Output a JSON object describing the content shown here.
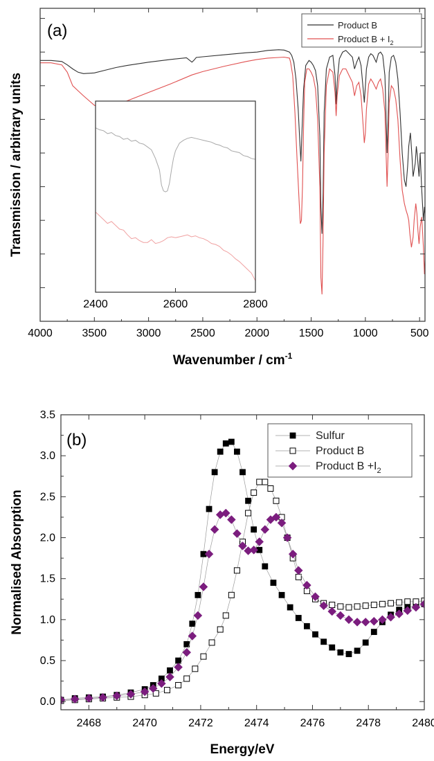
{
  "chart_data": [
    {
      "panel_label": "(a)",
      "type": "line",
      "xlabel": "Wavenumber / cm",
      "xlabel_sup": "-1",
      "ylabel": "Transmission / arbitrary units",
      "x_ticks": [
        "4000",
        "3500",
        "3000",
        "2500",
        "2000",
        "1500",
        "1000",
        "500"
      ],
      "xlim": [
        4000,
        450
      ],
      "x_reversed": true,
      "y_tick_labels_shown": false,
      "legend_position": "top-right",
      "series": [
        {
          "name": "Product B",
          "color": "#303030",
          "x": [
            4000,
            3900,
            3800,
            3750,
            3700,
            3650,
            3600,
            3500,
            3400,
            3300,
            3200,
            3000,
            2800,
            2650,
            2600,
            2580,
            2560,
            2500,
            2300,
            2100,
            2000,
            1900,
            1800,
            1750,
            1700,
            1680,
            1660,
            1640,
            1620,
            1605,
            1595,
            1585,
            1570,
            1550,
            1520,
            1500,
            1480,
            1460,
            1440,
            1420,
            1410,
            1400,
            1390,
            1380,
            1360,
            1330,
            1300,
            1280,
            1270,
            1260,
            1240,
            1210,
            1180,
            1150,
            1120,
            1100,
            1080,
            1060,
            1040,
            1020,
            1010,
            1000,
            990,
            970,
            950,
            930,
            900,
            880,
            860,
            840,
            820,
            810,
            800,
            790,
            780,
            760,
            740,
            720,
            700,
            680,
            660,
            640,
            625,
            610,
            600,
            585,
            570,
            560,
            540,
            530,
            520,
            505,
            495,
            480,
            465,
            455,
            450
          ],
          "y": [
            7.75,
            7.75,
            7.72,
            7.62,
            7.5,
            7.4,
            7.36,
            7.38,
            7.46,
            7.54,
            7.6,
            7.7,
            7.78,
            7.83,
            7.7,
            7.76,
            7.84,
            7.86,
            7.92,
            7.98,
            8.0,
            8.05,
            8.07,
            8.06,
            8.0,
            7.9,
            7.7,
            7.2,
            6.3,
            5.35,
            4.75,
            5.6,
            6.9,
            7.6,
            7.75,
            7.7,
            7.6,
            7.45,
            7.0,
            5.5,
            3.4,
            2.6,
            3.8,
            6.2,
            7.5,
            7.85,
            7.9,
            7.3,
            6.45,
            7.1,
            7.8,
            8.0,
            8.05,
            7.95,
            7.85,
            7.5,
            7.7,
            7.85,
            7.6,
            6.9,
            6.5,
            7.0,
            7.5,
            7.85,
            7.95,
            7.9,
            7.7,
            7.95,
            8.0,
            7.9,
            7.3,
            6.2,
            5.0,
            6.0,
            7.4,
            7.85,
            7.9,
            7.7,
            7.2,
            6.2,
            5.0,
            4.2,
            4.0,
            4.6,
            5.2,
            5.6,
            4.9,
            4.3,
            4.7,
            5.2,
            4.9,
            4.3,
            5.0,
            3.9,
            3.0,
            3.4,
            3.2
          ]
        },
        {
          "name": "Product B + I",
          "name_sub": "2",
          "color": "#e05050",
          "x": [
            4000,
            3900,
            3800,
            3750,
            3700,
            3650,
            3600,
            3500,
            3450,
            3400,
            3350,
            3300,
            3200,
            3000,
            2800,
            2600,
            2500,
            2300,
            2100,
            2000,
            1900,
            1800,
            1750,
            1700,
            1690,
            1670,
            1650,
            1630,
            1610,
            1600,
            1590,
            1580,
            1570,
            1560,
            1540,
            1520,
            1500,
            1480,
            1460,
            1440,
            1420,
            1410,
            1400,
            1390,
            1380,
            1360,
            1330,
            1300,
            1280,
            1270,
            1260,
            1240,
            1210,
            1180,
            1150,
            1120,
            1100,
            1080,
            1060,
            1040,
            1020,
            1010,
            1000,
            990,
            970,
            950,
            930,
            900,
            880,
            860,
            840,
            820,
            810,
            800,
            790,
            780,
            760,
            740,
            720,
            700,
            680,
            660,
            640,
            625,
            610,
            600,
            590,
            575,
            560,
            550,
            535,
            525,
            515,
            505,
            495,
            480,
            465,
            455,
            450
          ],
          "y": [
            7.68,
            7.68,
            7.62,
            7.4,
            7.0,
            6.85,
            6.7,
            6.42,
            6.34,
            6.32,
            6.36,
            6.42,
            6.55,
            6.8,
            7.05,
            7.32,
            7.42,
            7.58,
            7.72,
            7.78,
            7.82,
            7.84,
            7.85,
            7.82,
            7.7,
            7.3,
            6.2,
            4.8,
            3.5,
            2.9,
            3.0,
            4.0,
            5.8,
            7.1,
            7.5,
            7.5,
            7.4,
            7.25,
            6.9,
            6.0,
            4.0,
            1.3,
            0.8,
            2.5,
            5.0,
            7.0,
            7.5,
            7.4,
            6.8,
            6.1,
            6.7,
            7.3,
            7.5,
            7.5,
            7.3,
            7.1,
            6.7,
            7.0,
            7.1,
            6.7,
            5.8,
            5.3,
            5.6,
            6.3,
            7.05,
            7.2,
            7.1,
            6.9,
            7.1,
            7.2,
            6.9,
            6.2,
            5.1,
            4.0,
            5.0,
            6.5,
            7.0,
            6.9,
            6.6,
            6.0,
            4.8,
            3.9,
            3.5,
            3.3,
            3.15,
            3.0,
            2.6,
            2.2,
            2.5,
            3.0,
            3.5,
            3.2,
            2.7,
            2.3,
            2.8,
            3.1,
            2.2,
            1.4,
            1.8
          ]
        }
      ],
      "inset": {
        "type": "line",
        "x_ticks": [
          "2400",
          "2600",
          "2800"
        ],
        "xlim": [
          2400,
          2800
        ],
        "series": [
          {
            "name": "Product B",
            "color": "#a8a8a8",
            "x": [
              2400,
              2410,
              2420,
              2430,
              2440,
              2450,
              2460,
              2470,
              2480,
              2490,
              2500,
              2510,
              2520,
              2530,
              2540,
              2550,
              2560,
              2565,
              2570,
              2575,
              2580,
              2585,
              2590,
              2595,
              2600,
              2610,
              2620,
              2630,
              2640,
              2650,
              2660,
              2670,
              2680,
              2690,
              2700,
              2710,
              2720,
              2730,
              2740,
              2750,
              2760,
              2770,
              2780,
              2790,
              2800
            ],
            "y": [
              8.6,
              8.5,
              8.45,
              8.3,
              8.35,
              8.2,
              8.15,
              8.0,
              8.05,
              7.9,
              7.95,
              7.8,
              7.75,
              7.6,
              7.45,
              7.0,
              6.4,
              5.6,
              5.3,
              5.25,
              5.3,
              5.7,
              6.4,
              7.0,
              7.4,
              7.8,
              7.95,
              8.05,
              8.1,
              8.05,
              8.0,
              7.95,
              7.9,
              7.85,
              7.75,
              7.7,
              7.6,
              7.55,
              7.4,
              7.35,
              7.3,
              7.15,
              7.1,
              7.0,
              6.95
            ]
          },
          {
            "name": "Product B + I",
            "name_sub": "2",
            "color": "#f0a0a0",
            "x": [
              2400,
              2410,
              2420,
              2430,
              2440,
              2450,
              2460,
              2470,
              2480,
              2490,
              2500,
              2510,
              2520,
              2530,
              2540,
              2550,
              2560,
              2570,
              2580,
              2590,
              2600,
              2610,
              2620,
              2630,
              2640,
              2650,
              2660,
              2670,
              2680,
              2690,
              2700,
              2710,
              2720,
              2730,
              2740,
              2750,
              2760,
              2770,
              2780,
              2790,
              2800
            ],
            "y": [
              4.2,
              4.0,
              3.8,
              3.6,
              3.7,
              3.5,
              3.3,
              3.25,
              3.0,
              2.8,
              2.85,
              2.7,
              2.6,
              2.6,
              2.75,
              2.55,
              2.6,
              2.7,
              2.85,
              2.9,
              2.85,
              2.9,
              2.95,
              3.0,
              2.9,
              2.95,
              2.85,
              2.8,
              2.7,
              2.55,
              2.5,
              2.4,
              2.2,
              2.1,
              1.95,
              1.75,
              1.6,
              1.4,
              1.2,
              1.0,
              0.6
            ]
          }
        ]
      }
    },
    {
      "panel_label": "(b)",
      "type": "scatter",
      "xlabel": "Energy/eV",
      "ylabel": "Normalised Absorption",
      "x_ticks": [
        "2468",
        "2470",
        "2472",
        "2474",
        "2476",
        "2478",
        "2480"
      ],
      "y_ticks": [
        "0.0",
        "0.5",
        "1.0",
        "1.5",
        "2.0",
        "2.5",
        "3.0",
        "3.5"
      ],
      "xlim": [
        2467,
        2480
      ],
      "ylim": [
        -0.1,
        3.5
      ],
      "legend_position": "top-right",
      "series": [
        {
          "name": "Sulfur",
          "marker": "filled-square",
          "color": "#000000",
          "x": [
            2467.0,
            2467.5,
            2468.0,
            2468.5,
            2469.0,
            2469.5,
            2470.0,
            2470.3,
            2470.6,
            2470.9,
            2471.2,
            2471.5,
            2471.7,
            2471.9,
            2472.1,
            2472.3,
            2472.5,
            2472.7,
            2472.9,
            2473.1,
            2473.3,
            2473.5,
            2473.7,
            2473.9,
            2474.1,
            2474.3,
            2474.6,
            2474.9,
            2475.2,
            2475.5,
            2475.8,
            2476.1,
            2476.4,
            2476.7,
            2477.0,
            2477.3,
            2477.6,
            2477.9,
            2478.2,
            2478.5,
            2478.8,
            2479.1,
            2479.4,
            2479.7,
            2480.0
          ],
          "y": [
            0.02,
            0.04,
            0.05,
            0.06,
            0.08,
            0.11,
            0.15,
            0.2,
            0.28,
            0.38,
            0.5,
            0.7,
            0.95,
            1.3,
            1.8,
            2.35,
            2.8,
            3.05,
            3.15,
            3.17,
            3.05,
            2.8,
            2.45,
            2.1,
            1.85,
            1.65,
            1.45,
            1.3,
            1.15,
            1.02,
            0.92,
            0.82,
            0.73,
            0.66,
            0.6,
            0.58,
            0.62,
            0.72,
            0.85,
            0.97,
            1.06,
            1.12,
            1.15,
            1.17,
            1.19
          ]
        },
        {
          "name": "Product B",
          "marker": "open-square",
          "color": "#000000",
          "x": [
            2467.0,
            2467.5,
            2468.0,
            2468.5,
            2469.0,
            2469.5,
            2470.0,
            2470.4,
            2470.8,
            2471.2,
            2471.5,
            2471.8,
            2472.1,
            2472.4,
            2472.7,
            2472.9,
            2473.1,
            2473.3,
            2473.5,
            2473.7,
            2473.9,
            2474.1,
            2474.3,
            2474.5,
            2474.7,
            2474.9,
            2475.1,
            2475.3,
            2475.5,
            2475.8,
            2476.1,
            2476.4,
            2476.7,
            2477.0,
            2477.3,
            2477.6,
            2477.9,
            2478.2,
            2478.5,
            2478.8,
            2479.1,
            2479.4,
            2479.7,
            2480.0
          ],
          "y": [
            0.01,
            0.02,
            0.03,
            0.04,
            0.05,
            0.06,
            0.08,
            0.1,
            0.14,
            0.2,
            0.28,
            0.4,
            0.55,
            0.72,
            0.88,
            1.05,
            1.3,
            1.6,
            1.95,
            2.3,
            2.55,
            2.68,
            2.68,
            2.6,
            2.45,
            2.25,
            2.0,
            1.75,
            1.52,
            1.35,
            1.25,
            1.2,
            1.18,
            1.16,
            1.15,
            1.16,
            1.17,
            1.18,
            1.19,
            1.2,
            1.21,
            1.22,
            1.22,
            1.23
          ]
        },
        {
          "name": "Product B +I",
          "name_sub": "2",
          "marker": "filled-diamond",
          "color": "#7b1d7e",
          "x": [
            2467.0,
            2467.5,
            2468.0,
            2468.5,
            2469.0,
            2469.5,
            2470.0,
            2470.3,
            2470.6,
            2470.9,
            2471.2,
            2471.5,
            2471.7,
            2471.9,
            2472.1,
            2472.3,
            2472.5,
            2472.7,
            2472.9,
            2473.1,
            2473.3,
            2473.5,
            2473.7,
            2473.9,
            2474.1,
            2474.3,
            2474.5,
            2474.7,
            2474.9,
            2475.1,
            2475.3,
            2475.5,
            2475.8,
            2476.1,
            2476.4,
            2476.7,
            2477.0,
            2477.3,
            2477.6,
            2477.9,
            2478.2,
            2478.5,
            2478.8,
            2479.1,
            2479.4,
            2479.7,
            2480.0
          ],
          "y": [
            0.02,
            0.03,
            0.04,
            0.05,
            0.07,
            0.09,
            0.12,
            0.16,
            0.22,
            0.3,
            0.42,
            0.6,
            0.8,
            1.05,
            1.4,
            1.8,
            2.1,
            2.28,
            2.3,
            2.22,
            2.05,
            1.9,
            1.84,
            1.85,
            1.95,
            2.1,
            2.22,
            2.25,
            2.18,
            2.0,
            1.8,
            1.6,
            1.42,
            1.28,
            1.17,
            1.1,
            1.05,
            1.0,
            0.97,
            0.97,
            0.98,
            1.0,
            1.03,
            1.07,
            1.11,
            1.15,
            1.19
          ]
        }
      ]
    }
  ]
}
